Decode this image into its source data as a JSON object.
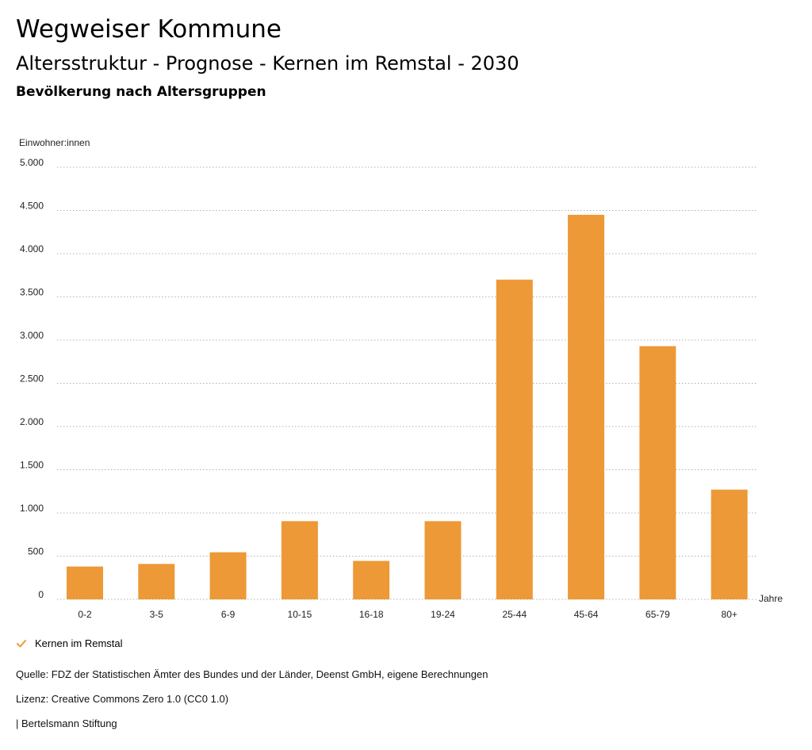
{
  "header": {
    "title": "Wegweiser Kommune",
    "subtitle": "Altersstruktur - Prognose - Kernen im Remstal - 2030",
    "chart_subtitle": "Bevölkerung nach Altersgruppen"
  },
  "colors": {
    "bar": "#ED9937",
    "grid": "#B0B0B0",
    "check": "#ED9937"
  },
  "chart_data": {
    "type": "bar",
    "ylabel": "Einwohner:innen",
    "xlabel": "Jahre",
    "categories": [
      "0-2",
      "3-5",
      "6-9",
      "10-15",
      "16-18",
      "19-24",
      "25-44",
      "45-64",
      "65-79",
      "80+"
    ],
    "series": [
      {
        "name": "Kernen im Remstal",
        "values": [
          380,
          410,
          545,
          905,
          445,
          905,
          3700,
          4450,
          2930,
          1270
        ]
      }
    ],
    "ylim": [
      0,
      5000
    ],
    "yticks": [
      0,
      500,
      1000,
      1500,
      2000,
      2500,
      3000,
      3500,
      4000,
      4500,
      5000
    ],
    "ytick_labels": [
      "0",
      "500",
      "1.000",
      "1.500",
      "2.000",
      "2.500",
      "3.000",
      "3.500",
      "4.000",
      "4.500",
      "5.000"
    ],
    "grid": true,
    "legend_position": "bottom-left"
  },
  "legend": {
    "label": "Kernen im Remstal",
    "icon": "check-icon"
  },
  "footer": {
    "source": "Quelle: FDZ der Statistischen Ämter des Bundes und der Länder, Deenst GmbH, eigene Berechnungen",
    "license": "Lizenz: Creative Commons Zero 1.0 (CC0 1.0)",
    "publisher": "| Bertelsmann Stiftung"
  }
}
